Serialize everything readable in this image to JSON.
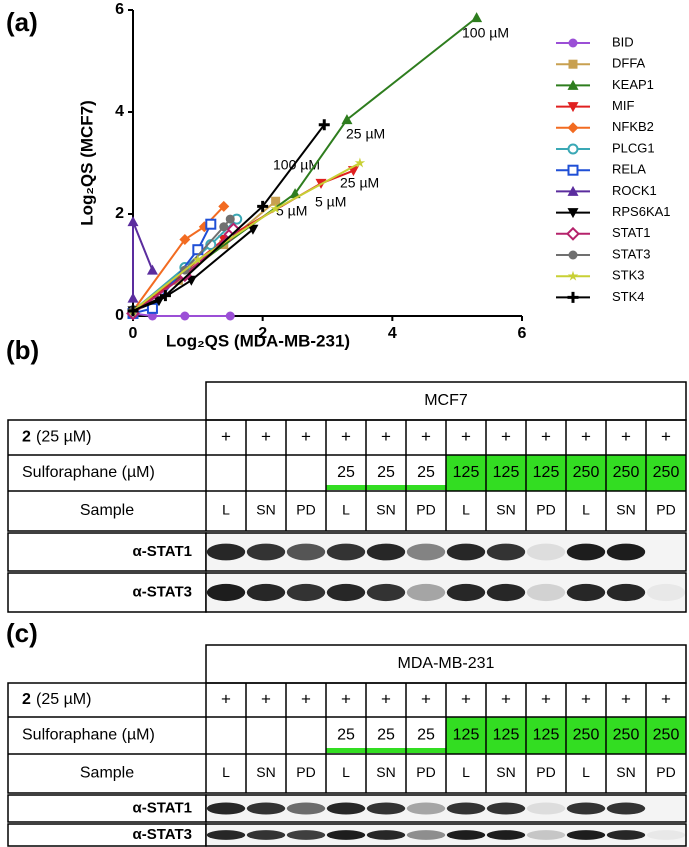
{
  "chart_data": {
    "type": "line",
    "panel_label": "(a)",
    "xlabel": "Log₂QS (MDA-MB-231)",
    "ylabel": "Log₂QS (MCF7)",
    "xlim": [
      0,
      6
    ],
    "ylim": [
      0,
      6
    ],
    "xticks": [
      0,
      2,
      4,
      6
    ],
    "yticks": [
      0,
      2,
      4,
      6
    ],
    "annotations": [
      {
        "text": "100 µM",
        "color": "#2e7d1e"
      },
      {
        "text": "25 µM",
        "color": "#2e7d1e"
      },
      {
        "text": "5 µM",
        "color": "#2e7d1e"
      },
      {
        "text": "100 µM",
        "color": "#e02020"
      },
      {
        "text": "25 µM",
        "color": "#e02020"
      },
      {
        "text": "5 µM",
        "color": "#e02020"
      }
    ],
    "series": [
      {
        "name": "BID",
        "color": "#9b4fd6",
        "marker": "circle",
        "x": [
          0,
          0.3,
          0.8,
          1.5
        ],
        "values": [
          0.05,
          0,
          0,
          0
        ]
      },
      {
        "name": "DFFA",
        "color": "#c8a050",
        "marker": "square",
        "x": [
          0,
          0.7,
          1.4,
          2.2
        ],
        "values": [
          0.1,
          0.7,
          1.4,
          2.25
        ]
      },
      {
        "name": "KEAP1",
        "color": "#2e7d1e",
        "marker": "triangle",
        "x": [
          0,
          2.5,
          3.3,
          5.3
        ],
        "values": [
          0.1,
          2.4,
          3.85,
          5.85
        ]
      },
      {
        "name": "MIF",
        "color": "#e02020",
        "marker": "triangle-down",
        "x": [
          0,
          1.4,
          2.9,
          3.4
        ],
        "values": [
          0.05,
          1.5,
          2.6,
          2.85
        ]
      },
      {
        "name": "NFKB2",
        "color": "#f26b21",
        "marker": "diamond",
        "x": [
          0,
          0.8,
          1.1,
          1.4
        ],
        "values": [
          0.1,
          1.5,
          1.75,
          2.15
        ]
      },
      {
        "name": "PLCG1",
        "color": "#3aa8b5",
        "marker": "circle-open",
        "x": [
          0,
          0.8,
          1.2,
          1.6
        ],
        "values": [
          0.1,
          0.95,
          1.4,
          1.9
        ]
      },
      {
        "name": "RELA",
        "color": "#1f4fd6",
        "marker": "square-open",
        "x": [
          0,
          0.3,
          1.0,
          1.2
        ],
        "values": [
          0.05,
          0.15,
          1.3,
          1.8
        ]
      },
      {
        "name": "ROCK1",
        "color": "#5b2d9e",
        "marker": "triangle",
        "x": [
          0,
          0,
          0.3
        ],
        "values": [
          0.35,
          1.85,
          0.9
        ]
      },
      {
        "name": "RPS6KA1",
        "color": "#000000",
        "marker": "triangle-down",
        "x": [
          0,
          0.4,
          0.9,
          1.85
        ],
        "values": [
          0.1,
          0.3,
          0.7,
          1.7
        ]
      },
      {
        "name": "STAT1",
        "color": "#b5226b",
        "marker": "diamond-open",
        "x": [
          0,
          0.8,
          1.5,
          1.55
        ],
        "values": [
          0.05,
          0.8,
          1.6,
          1.7
        ]
      },
      {
        "name": "STAT3",
        "color": "#707070",
        "marker": "circle",
        "x": [
          0,
          0.8,
          1.4,
          1.5
        ],
        "values": [
          0.1,
          0.9,
          1.75,
          1.9
        ]
      },
      {
        "name": "STK3",
        "color": "#c8d035",
        "marker": "star",
        "x": [
          0,
          1.0,
          2.2,
          3.5
        ],
        "values": [
          0.1,
          1.1,
          2.1,
          3.0
        ]
      },
      {
        "name": "STK4",
        "color": "#000000",
        "marker": "plus",
        "x": [
          0,
          0.5,
          2.0,
          2.95
        ],
        "values": [
          0.1,
          0.4,
          2.15,
          3.75
        ]
      }
    ]
  },
  "panels": [
    {
      "label": "(b)",
      "cell_line": "MCF7",
      "compound": "2",
      "compound_rest": "(25 µM)",
      "plus": [
        "+",
        "+",
        "+",
        "+",
        "+",
        "+",
        "+",
        "+",
        "+",
        "+",
        "+",
        "+"
      ],
      "sulforaphane_label": "Sulforaphane (µM)",
      "sulforaphane": [
        "25",
        "25",
        "25",
        "125",
        "125",
        "125",
        "250",
        "250",
        "250"
      ],
      "sample_label": "Sample",
      "samples": [
        "L",
        "SN",
        "PD",
        "L",
        "SN",
        "PD",
        "L",
        "SN",
        "PD",
        "L",
        "SN",
        "PD"
      ],
      "blots": [
        "α-STAT1",
        "α-STAT3"
      ]
    },
    {
      "label": "(c)",
      "cell_line": "MDA-MB-231",
      "compound": "2",
      "compound_rest": "(25 µM)",
      "plus": [
        "+",
        "+",
        "+",
        "+",
        "+",
        "+",
        "+",
        "+",
        "+",
        "+",
        "+",
        "+"
      ],
      "sulforaphane_label": "Sulforaphane (µM)",
      "sulforaphane": [
        "25",
        "25",
        "25",
        "125",
        "125",
        "125",
        "250",
        "250",
        "250"
      ],
      "sample_label": "Sample",
      "samples": [
        "L",
        "SN",
        "PD",
        "L",
        "SN",
        "PD",
        "L",
        "SN",
        "PD",
        "L",
        "SN",
        "PD"
      ],
      "blots": [
        "α-STAT1",
        "α-STAT3"
      ]
    }
  ]
}
